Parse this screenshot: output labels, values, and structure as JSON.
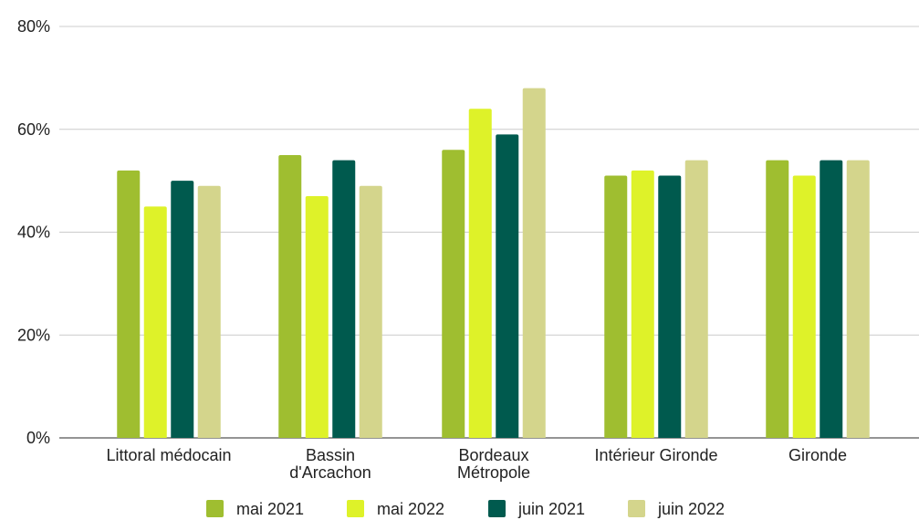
{
  "chart_data": {
    "type": "bar",
    "categories": [
      [
        "Littoral médocain"
      ],
      [
        "Bassin",
        "d'Arcachon"
      ],
      [
        "Bordeaux",
        "Métropole"
      ],
      [
        "Intérieur Gironde"
      ],
      [
        "Gironde"
      ]
    ],
    "series": [
      {
        "name": "mai 2021",
        "color": "#9fbe30",
        "values": [
          52,
          55,
          56,
          51,
          54
        ]
      },
      {
        "name": "mai 2022",
        "color": "#def229",
        "values": [
          45,
          47,
          64,
          52,
          51
        ]
      },
      {
        "name": "juin 2021",
        "color": "#005a4e",
        "values": [
          50,
          54,
          59,
          51,
          54
        ]
      },
      {
        "name": "juin 2022",
        "color": "#d4d58c",
        "values": [
          49,
          49,
          68,
          54,
          54
        ]
      }
    ],
    "yticks": [
      "0%",
      "20%",
      "40%",
      "60%",
      "80%"
    ],
    "ylim": [
      0,
      80
    ],
    "grid": true,
    "legend_position": "bottom"
  }
}
